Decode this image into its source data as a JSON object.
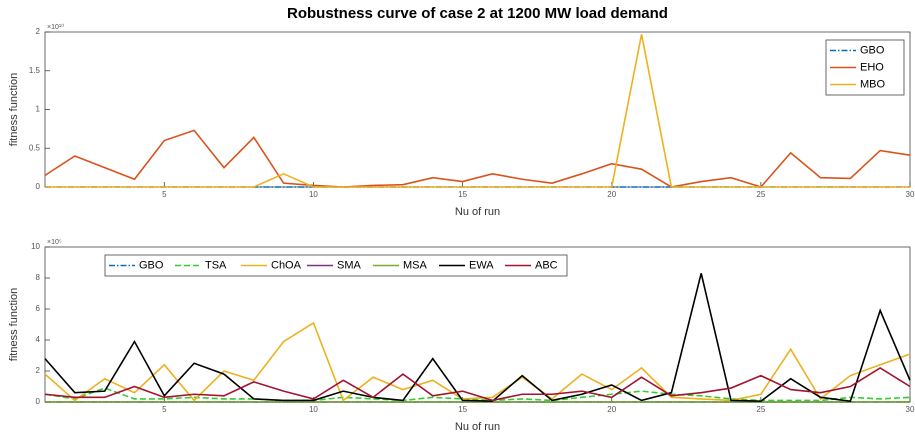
{
  "chart_data": [
    {
      "type": "line",
      "title": "Robustness curve of case 2 at 1200 MW load demand",
      "x_label": "Nu of run",
      "y_label": "fitness function",
      "y_exponent": "×10¹⁰",
      "x": [
        1,
        2,
        3,
        4,
        5,
        6,
        7,
        8,
        9,
        10,
        11,
        12,
        13,
        14,
        15,
        16,
        17,
        18,
        19,
        20,
        21,
        22,
        23,
        24,
        25,
        26,
        27,
        28,
        29,
        30
      ],
      "xlim": [
        1,
        30
      ],
      "xticks": [
        5,
        10,
        15,
        20,
        25,
        30
      ],
      "ylim": [
        0,
        2
      ],
      "yticks": [
        0,
        0.5,
        1,
        1.5,
        2
      ],
      "legend": "northeast",
      "legend_orientation": "vertical",
      "series": [
        {
          "name": "GBO",
          "color": "#0072bd",
          "style": "dashdot",
          "values": [
            0,
            0,
            0,
            0,
            0,
            0,
            0,
            0,
            0,
            0,
            0,
            0,
            0,
            0,
            0,
            0,
            0,
            0,
            0,
            0,
            0,
            0,
            0,
            0,
            0,
            0,
            0,
            0,
            0,
            0
          ]
        },
        {
          "name": "EHO",
          "color": "#d95319",
          "style": "solid",
          "values": [
            0.15,
            0.4,
            0.25,
            0.1,
            0.6,
            0.73,
            0.25,
            0.64,
            0.05,
            0.02,
            0,
            0.02,
            0.03,
            0.12,
            0.07,
            0.17,
            0.1,
            0.05,
            0.17,
            0.3,
            0.23,
            0,
            0.07,
            0.12,
            0,
            0.44,
            0.12,
            0.11,
            0.47,
            0.41
          ]
        },
        {
          "name": "MBO",
          "color": "#edb120",
          "style": "solid",
          "values": [
            0,
            0,
            0,
            0,
            0,
            0,
            0,
            0,
            0.17,
            0,
            0,
            0,
            0,
            0,
            0,
            0,
            0,
            0,
            0,
            0,
            1.97,
            0,
            0,
            0,
            0,
            0,
            0,
            0,
            0,
            0
          ]
        }
      ]
    },
    {
      "type": "line",
      "x_label": "Nu of run",
      "y_label": "fitness function",
      "y_exponent": "×10⁵",
      "x": [
        1,
        2,
        3,
        4,
        5,
        6,
        7,
        8,
        9,
        10,
        11,
        12,
        13,
        14,
        15,
        16,
        17,
        18,
        19,
        20,
        21,
        22,
        23,
        24,
        25,
        26,
        27,
        28,
        29,
        30
      ],
      "xlim": [
        1,
        30
      ],
      "xticks": [
        5,
        10,
        15,
        20,
        25,
        30
      ],
      "ylim": [
        0,
        10
      ],
      "yticks": [
        0,
        2,
        4,
        6,
        8,
        10
      ],
      "legend": "northwest",
      "legend_orientation": "horizontal",
      "series": [
        {
          "name": "GBO",
          "color": "#0072bd",
          "style": "dashdot",
          "values": [
            0,
            0,
            0,
            0,
            0,
            0,
            0,
            0,
            0,
            0,
            0,
            0,
            0,
            0,
            0,
            0,
            0,
            0,
            0,
            0,
            0,
            0,
            0,
            0,
            0,
            0,
            0,
            0,
            0,
            0
          ]
        },
        {
          "name": "TSA",
          "color": "#33cc33",
          "style": "dashed",
          "values": [
            0.5,
            0.2,
            0.9,
            0.2,
            0.2,
            0.3,
            0.2,
            0.2,
            0.1,
            0.1,
            0.3,
            0.2,
            0.1,
            0.3,
            0.2,
            0.1,
            0.2,
            0.1,
            0.3,
            0.5,
            0.7,
            0.5,
            0.4,
            0.2,
            0.1,
            0.1,
            0.1,
            0.3,
            0.2,
            0.3
          ]
        },
        {
          "name": "ChOA",
          "color": "#edb120",
          "style": "solid",
          "values": [
            1.8,
            0.1,
            1.5,
            0.6,
            2.4,
            0.1,
            2.0,
            1.4,
            3.9,
            5.1,
            0.1,
            1.6,
            0.8,
            1.4,
            0.2,
            0.3,
            1.6,
            0.2,
            1.8,
            0.8,
            2.2,
            0.3,
            0.2,
            0.1,
            0.5,
            3.4,
            0.2,
            1.7,
            2.4,
            3.1
          ]
        },
        {
          "name": "SMA",
          "color": "#7e2f8e",
          "style": "solid",
          "values": [
            0,
            0,
            0,
            0,
            0,
            0,
            0,
            0,
            0,
            0,
            0,
            0,
            0,
            0,
            0,
            0,
            0,
            0,
            0,
            0,
            0,
            0,
            0,
            0,
            0,
            0,
            0,
            0,
            0,
            0
          ]
        },
        {
          "name": "MSA",
          "color": "#77ac30",
          "style": "solid",
          "values": [
            0,
            0,
            0,
            0,
            0,
            0,
            0,
            0,
            0,
            0,
            0,
            0,
            0,
            0,
            0,
            0,
            0,
            0,
            0,
            0,
            0,
            0,
            0,
            0,
            0,
            0,
            0,
            0,
            0,
            0
          ]
        },
        {
          "name": "EWA",
          "color": "#000000",
          "style": "solid",
          "values": [
            2.8,
            0.6,
            0.7,
            3.9,
            0.4,
            2.5,
            1.8,
            0.2,
            0.1,
            0.1,
            0.7,
            0.3,
            0.1,
            2.8,
            0.1,
            0.05,
            1.7,
            0.1,
            0.5,
            1.1,
            0.1,
            0.6,
            8.3,
            0.1,
            0.05,
            1.5,
            0.3,
            0.05,
            5.9,
            1.4
          ]
        },
        {
          "name": "ABC",
          "color": "#a2142f",
          "style": "solid",
          "values": [
            0.5,
            0.3,
            0.3,
            1.0,
            0.3,
            0.5,
            0.4,
            1.3,
            0.7,
            0.2,
            1.4,
            0.3,
            1.8,
            0.4,
            0.7,
            0.1,
            0.5,
            0.5,
            0.7,
            0.3,
            1.6,
            0.4,
            0.6,
            0.9,
            1.7,
            0.8,
            0.6,
            1.0,
            2.2,
            1.0
          ]
        }
      ]
    }
  ]
}
